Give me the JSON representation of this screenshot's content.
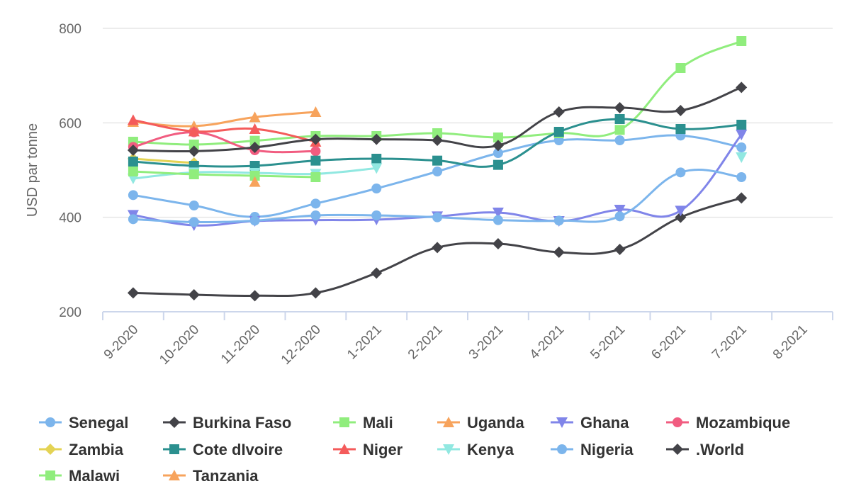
{
  "chart_data": {
    "type": "line",
    "title": "",
    "xlabel": "",
    "ylabel": "USD par tonne",
    "ylim": [
      200,
      800
    ],
    "yticks": [
      200,
      400,
      600,
      800
    ],
    "grid": true,
    "legend_position": "bottom",
    "categories": [
      "9-2020",
      "10-2020",
      "11-2020",
      "12-2020",
      "1-2021",
      "2-2021",
      "3-2021",
      "4-2021",
      "5-2021",
      "6-2021",
      "7-2021",
      "8-2021"
    ],
    "series": [
      {
        "name": "Senegal",
        "color": "#7cb5ec",
        "marker": "circle",
        "values": [
          447,
          425,
          401,
          429,
          461,
          497,
          536,
          563,
          563,
          573,
          548,
          null
        ]
      },
      {
        "name": "Burkina Faso",
        "color": "#434348",
        "marker": "diamond",
        "values": [
          240,
          236,
          234,
          240,
          282,
          336,
          344,
          326,
          332,
          400,
          441,
          null
        ]
      },
      {
        "name": "Mali",
        "color": "#90ed7d",
        "marker": "square",
        "values": [
          560,
          554,
          562,
          572,
          572,
          578,
          569,
          578,
          585,
          716,
          773,
          null
        ]
      },
      {
        "name": "Uganda",
        "color": "#f7a35c",
        "marker": "triangle",
        "values": [
          602,
          593,
          612,
          623,
          null,
          null,
          null,
          null,
          null,
          null,
          null,
          null
        ]
      },
      {
        "name": "Ghana",
        "color": "#8085e9",
        "marker": "triangle-down",
        "values": [
          405,
          383,
          392,
          394,
          395,
          402,
          410,
          392,
          416,
          414,
          575,
          null
        ]
      },
      {
        "name": "Mozambique",
        "color": "#f15c80",
        "marker": "circle",
        "values": [
          549,
          580,
          542,
          540,
          null,
          null,
          null,
          null,
          null,
          null,
          null,
          null
        ]
      },
      {
        "name": "Zambia",
        "color": "#e4d354",
        "marker": "diamond",
        "values": [
          524,
          515,
          null,
          null,
          null,
          null,
          null,
          null,
          null,
          null,
          null,
          null
        ]
      },
      {
        "name": "Cote dIvoire",
        "color": "#2b908f",
        "marker": "square",
        "values": [
          518,
          509,
          509,
          520,
          524,
          520,
          511,
          581,
          608,
          587,
          596,
          null
        ]
      },
      {
        "name": "Niger",
        "color": "#f45b5b",
        "marker": "triangle",
        "values": [
          606,
          582,
          587,
          560,
          null,
          null,
          null,
          null,
          null,
          null,
          null,
          null
        ]
      },
      {
        "name": "Kenya",
        "color": "#91e8e1",
        "marker": "triangle-down",
        "values": [
          482,
          495,
          494,
          492,
          504,
          null,
          null,
          null,
          null,
          null,
          527,
          null
        ]
      },
      {
        "name": "Nigeria",
        "color": "#7cb5ec",
        "marker": "circle",
        "values": [
          396,
          390,
          393,
          404,
          404,
          400,
          394,
          393,
          402,
          495,
          485,
          null
        ]
      },
      {
        "name": ".World",
        "color": "#434348",
        "marker": "diamond",
        "values": [
          542,
          540,
          548,
          565,
          565,
          563,
          552,
          623,
          632,
          626,
          675,
          null
        ]
      },
      {
        "name": "Malawi",
        "color": "#90ed7d",
        "marker": "square",
        "values": [
          497,
          491,
          488,
          485,
          null,
          null,
          null,
          null,
          null,
          null,
          null,
          null
        ]
      },
      {
        "name": "Tanzania",
        "color": "#f7a35c",
        "marker": "triangle",
        "values": [
          null,
          null,
          475,
          null,
          null,
          null,
          null,
          null,
          null,
          null,
          null,
          null
        ]
      }
    ]
  }
}
